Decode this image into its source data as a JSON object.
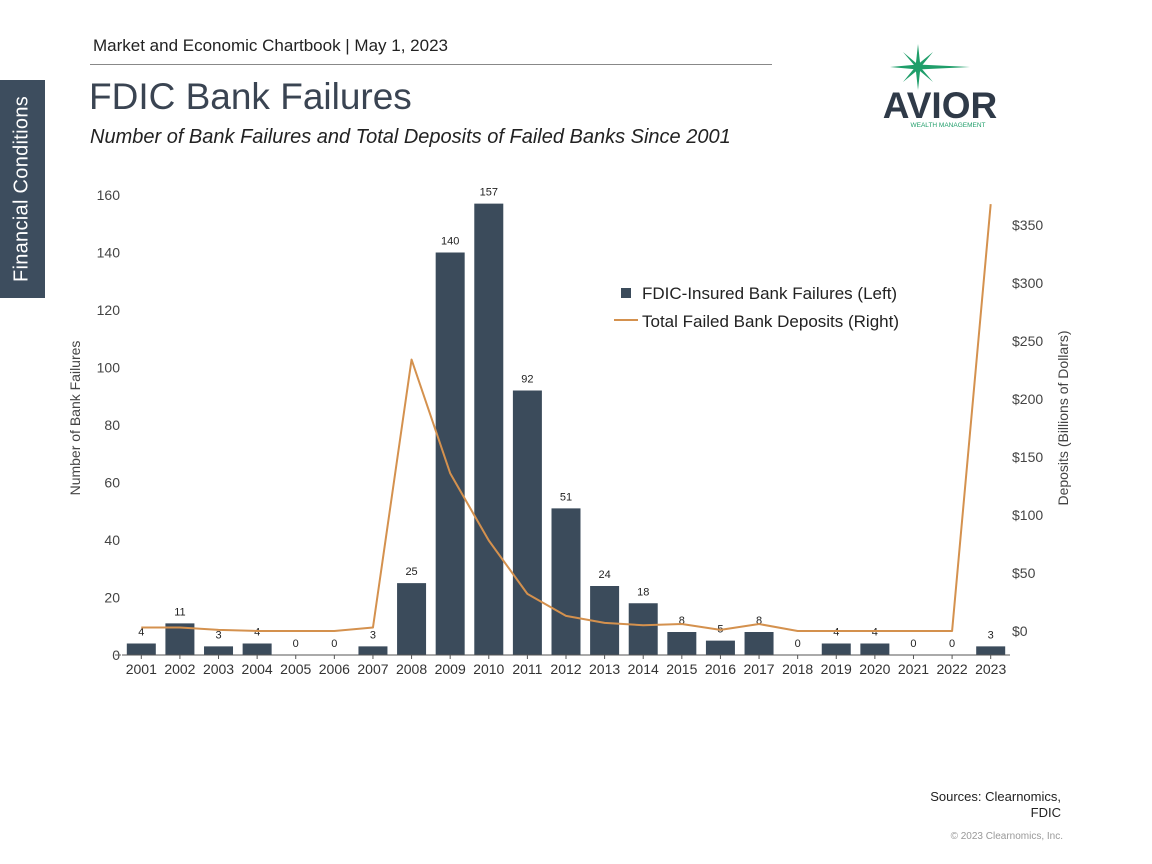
{
  "header": {
    "chartbook": "Market and Economic Chartbook | May 1, 2023",
    "side_tab": "Financial Conditions"
  },
  "logo": {
    "name": "AVIOR",
    "tagline": "WEALTH MANAGEMENT",
    "colors": {
      "star": "#1f9e6a",
      "text": "#2f3a48",
      "tagline": "#1f9e6a"
    }
  },
  "footer": {
    "sources_line1": "Sources: Clearnomics,",
    "sources_line2": "FDIC",
    "copyright": "© 2023 Clearnomics, Inc."
  },
  "colors": {
    "bar": "#3b4b5b",
    "line": "#d4914e",
    "side_tab": "#3d4d5e",
    "title": "#3a4452"
  },
  "chart_data": {
    "type": "bar",
    "title": "FDIC Bank Failures",
    "subtitle": "Number of Bank Failures and Total Deposits of Failed Banks Since 2001",
    "categories": [
      "2001",
      "2002",
      "2003",
      "2004",
      "2005",
      "2006",
      "2007",
      "2008",
      "2009",
      "2010",
      "2011",
      "2012",
      "2013",
      "2014",
      "2015",
      "2016",
      "2017",
      "2018",
      "2019",
      "2020",
      "2021",
      "2022",
      "2023"
    ],
    "series": [
      {
        "name": "FDIC-Insured Bank Failures (Left)",
        "type": "bar",
        "axis": "left",
        "values": [
          4,
          11,
          3,
          4,
          0,
          0,
          3,
          25,
          140,
          157,
          92,
          51,
          24,
          18,
          8,
          5,
          8,
          0,
          4,
          4,
          0,
          0,
          3
        ]
      },
      {
        "name": "Total Failed Bank Deposits (Right)",
        "type": "line",
        "axis": "right",
        "values": [
          3,
          3,
          1,
          0,
          0,
          0,
          3,
          234,
          136,
          78,
          32,
          13,
          7,
          5,
          6,
          1,
          6,
          0,
          0,
          0,
          0,
          0,
          368
        ]
      }
    ],
    "ylabel": "Number of Bank Failures",
    "y2label": "Deposits (Billions of Dollars)",
    "ylim": [
      0,
      160
    ],
    "y2lim": [
      0,
      350
    ],
    "yticks": [
      "0",
      "20",
      "40",
      "60",
      "80",
      "100",
      "120",
      "140",
      "160"
    ],
    "y2ticks": [
      "$0",
      "$50",
      "$100",
      "$150",
      "$200",
      "$250",
      "$300",
      "$350"
    ],
    "data_labels": true,
    "legend_position": "upper-right inside plot",
    "grid": false
  }
}
